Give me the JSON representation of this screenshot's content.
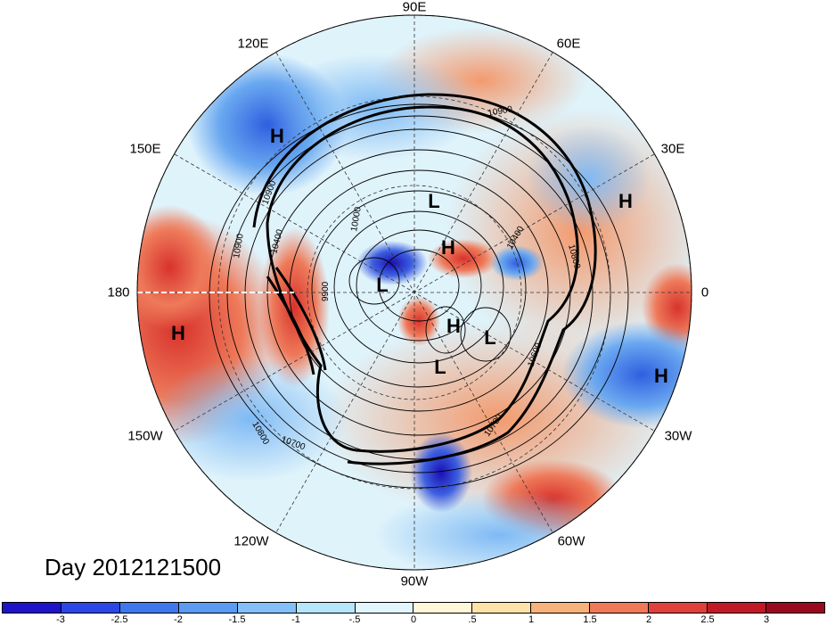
{
  "title": "Day 2012121500",
  "longitude_labels": [
    "90E",
    "60E",
    "30E",
    "0",
    "30W",
    "60W",
    "90W",
    "120W",
    "150W",
    "180",
    "150E",
    "120E"
  ],
  "pressure_centers": [
    "H",
    "H",
    "L",
    "H",
    "L",
    "H",
    "L",
    "L",
    "H",
    "H"
  ],
  "contour_labels": [
    "10900",
    "10900",
    "10800",
    "10900",
    "10400",
    "9900",
    "10600",
    "10700",
    "10700",
    "10800",
    "10400",
    "10000"
  ],
  "colorbar": {
    "ticks": [
      "-3",
      "-2.5",
      "-2",
      "-1.5",
      "-1",
      "-.5",
      "0",
      ".5",
      "1",
      "1.5",
      "2",
      "2.5",
      "3"
    ],
    "colors": [
      "#1e14c8",
      "#2b47e6",
      "#3f78ee",
      "#5b9cf2",
      "#83c0f7",
      "#b5e6fb",
      "#e2f6fd",
      "#fff7d9",
      "#fde3a6",
      "#f8b27c",
      "#f07a58",
      "#e0403a",
      "#c01a26",
      "#9a0a1e"
    ]
  }
}
